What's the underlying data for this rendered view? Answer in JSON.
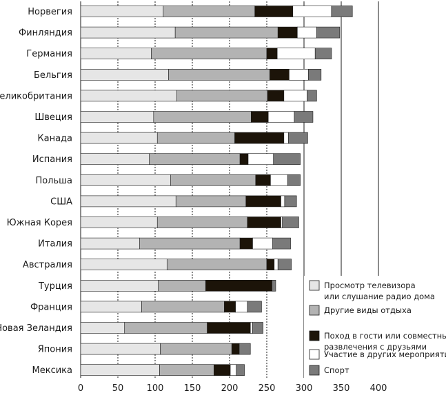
{
  "chart_data": {
    "type": "bar",
    "orientation": "horizontal",
    "stacked": true,
    "xlim": [
      0,
      400
    ],
    "x_ticks": [
      0,
      50,
      100,
      150,
      200,
      250,
      300,
      350,
      400
    ],
    "categories": [
      "Норвегия",
      "Финляндия",
      "Германия",
      "Бельгия",
      "Великобритания",
      "Швеция",
      "Канада",
      "Испания",
      "Польша",
      "США",
      "Южная Корея",
      "Италия",
      "Австралия",
      "Турция",
      "Франция",
      "Новая Зеландия",
      "Япония",
      "Мексика"
    ],
    "series": [
      {
        "name": "Просмотр телевизора или слушание радио дома",
        "legend_lines": [
          "Просмотр телевизора",
          "или слушание радио дома"
        ],
        "color": "#e6e6e6",
        "values": [
          111,
          127,
          95,
          118,
          129,
          98,
          103,
          92,
          121,
          128,
          103,
          79,
          116,
          104,
          82,
          59,
          107,
          106
        ]
      },
      {
        "name": "Другие виды отдыха",
        "legend_lines": [
          "Другие виды отдыха"
        ],
        "color": "#b3b3b3",
        "values": [
          123,
          138,
          155,
          136,
          122,
          131,
          104,
          122,
          114,
          94,
          121,
          135,
          134,
          64,
          111,
          111,
          96,
          73
        ]
      },
      {
        "name": "Поход в гости или совместные развлечения с друзьями",
        "legend_lines": [
          "Поход в гости или совместные",
          "развлечения с друзьями"
        ],
        "color": "#1c1409",
        "values": [
          51,
          26,
          14,
          26,
          22,
          23,
          66,
          11,
          20,
          47,
          45,
          17,
          10,
          89,
          15,
          58,
          10,
          22
        ]
      },
      {
        "name": "Участие в других мероприятиях",
        "legend_lines": [
          "Участие в других мероприятиях"
        ],
        "color": "#ffffff",
        "values": [
          52,
          26,
          51,
          26,
          31,
          35,
          6,
          34,
          23,
          5,
          2,
          27,
          5,
          0,
          16,
          3,
          0,
          8
        ]
      },
      {
        "name": "Спорт",
        "legend_lines": [
          "Спорт"
        ],
        "color": "#7a7a7a",
        "values": [
          28,
          31,
          22,
          17,
          13,
          25,
          26,
          36,
          17,
          16,
          22,
          24,
          18,
          5,
          19,
          14,
          15,
          11
        ]
      }
    ]
  }
}
